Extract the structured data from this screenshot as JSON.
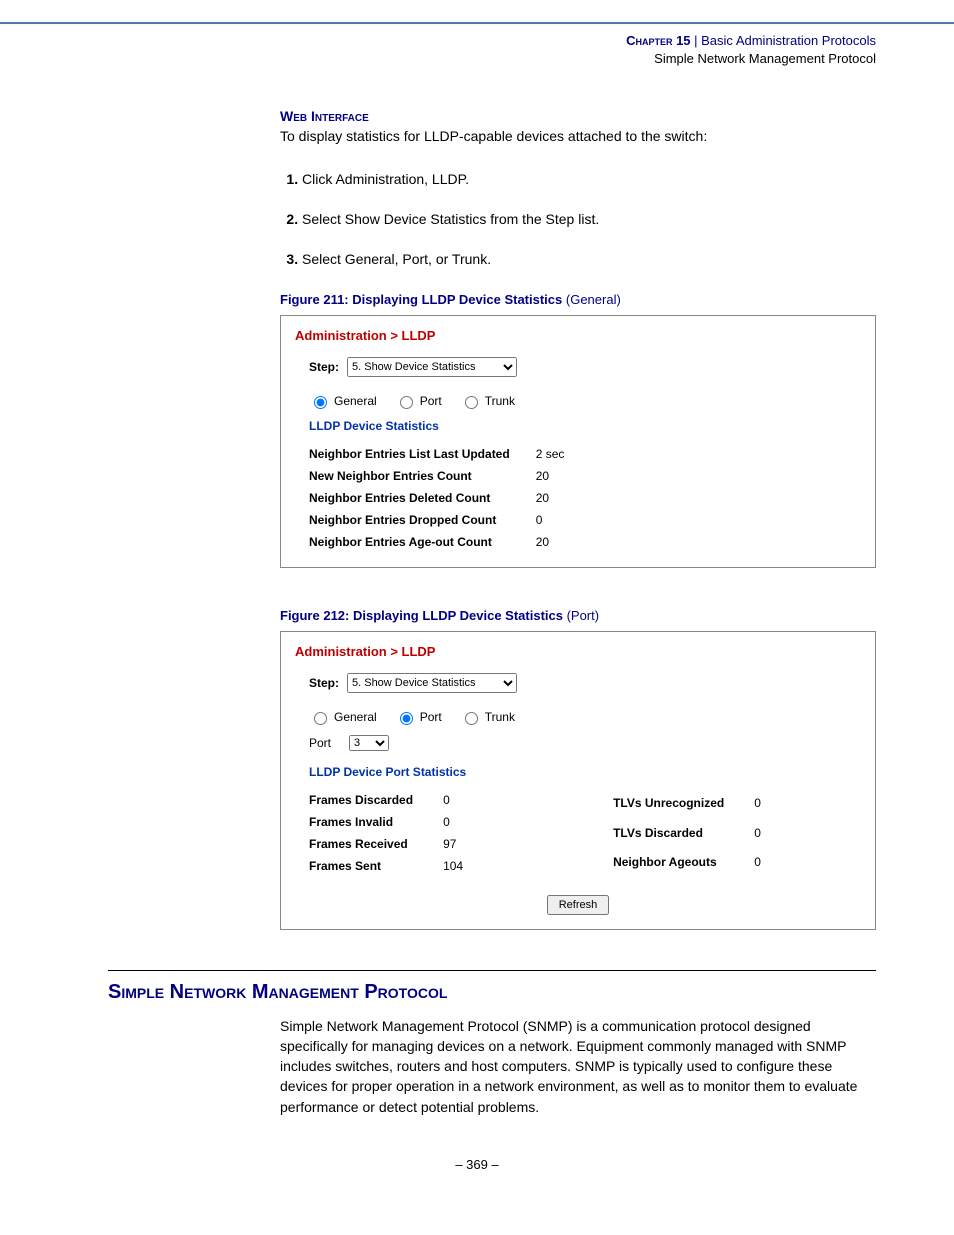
{
  "header": {
    "chapter": "Chapter 15",
    "sep": "  |  ",
    "title": "Basic Administration Protocols",
    "subtitle": "Simple Network Management Protocol"
  },
  "web_interface": {
    "heading": "Web Interface",
    "intro": "To display statistics for LLDP-capable devices attached to the switch:",
    "steps": [
      "Click Administration, LLDP.",
      "Select Show Device Statistics from the Step list.",
      "Select General, Port, or Trunk."
    ]
  },
  "fig211": {
    "label_bold": "Figure 211:  Displaying LLDP Device Statistics ",
    "label_norm": "(General)",
    "crumb": "Administration > LLDP",
    "step_label": "Step:",
    "step_value": "5. Show Device Statistics",
    "radios": {
      "general": "General",
      "port": "Port",
      "trunk": "Trunk"
    },
    "stats_title": "LLDP Device Statistics",
    "rows": [
      [
        "Neighbor Entries List Last Updated",
        "2 sec"
      ],
      [
        "New Neighbor Entries Count",
        "20"
      ],
      [
        "Neighbor Entries Deleted Count",
        "20"
      ],
      [
        "Neighbor Entries Dropped Count",
        "0"
      ],
      [
        "Neighbor Entries Age-out Count",
        "20"
      ]
    ]
  },
  "fig212": {
    "label_bold": "Figure 212:  Displaying LLDP Device Statistics ",
    "label_norm": "(Port)",
    "crumb": "Administration > LLDP",
    "step_label": "Step:",
    "step_value": "5. Show Device Statistics",
    "radios": {
      "general": "General",
      "port": "Port",
      "trunk": "Trunk"
    },
    "port_label": "Port",
    "port_value": "3",
    "stats_title": "LLDP Device Port Statistics",
    "left": [
      [
        "Frames Discarded",
        "0"
      ],
      [
        "Frames Invalid",
        "0"
      ],
      [
        "Frames Received",
        "97"
      ],
      [
        "Frames Sent",
        "104"
      ]
    ],
    "right": [
      [
        "TLVs Unrecognized",
        "0"
      ],
      [
        "TLVs Discarded",
        "0"
      ],
      [
        "Neighbor Ageouts",
        "0"
      ]
    ],
    "refresh": "Refresh"
  },
  "snmp": {
    "heading": "Simple Network Management Protocol",
    "para": "Simple Network Management Protocol (SNMP) is a communication protocol designed specifically for managing devices on a network. Equipment commonly managed with SNMP includes switches, routers and host computers. SNMP is typically used to configure these devices for proper operation in a network environment, as well as to monitor them to evaluate performance or detect potential problems."
  },
  "footer": "–  369  –"
}
